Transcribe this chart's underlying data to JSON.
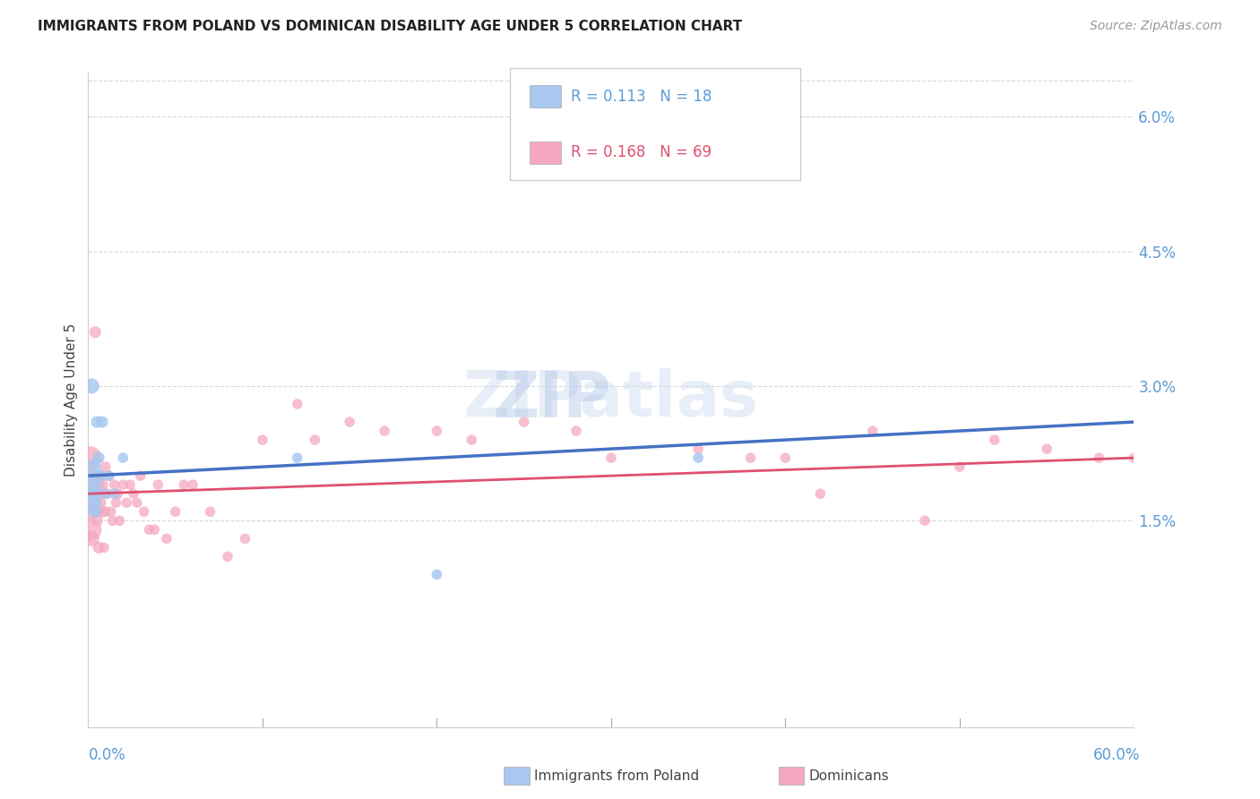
{
  "title": "IMMIGRANTS FROM POLAND VS DOMINICAN DISABILITY AGE UNDER 5 CORRELATION CHART",
  "source": "Source: ZipAtlas.com",
  "ylabel": "Disability Age Under 5",
  "ytick_vals": [
    0.0,
    0.015,
    0.03,
    0.045,
    0.06
  ],
  "ytick_labels": [
    "",
    "1.5%",
    "3.0%",
    "4.5%",
    "6.0%"
  ],
  "xmin": 0.0,
  "xmax": 0.6,
  "ymin": -0.008,
  "ymax": 0.065,
  "legend_r1": "R = 0.113",
  "legend_n1": "N = 18",
  "legend_r2": "R = 0.168",
  "legend_n2": "N = 69",
  "poland_color": "#a8c8f0",
  "dominican_color": "#f5a8c0",
  "trend_poland_color": "#4472c4",
  "trend_dominican_color": "#e05070",
  "poland_x": [
    0.001,
    0.001,
    0.002,
    0.002,
    0.003,
    0.003,
    0.004,
    0.005,
    0.006,
    0.007,
    0.008,
    0.01,
    0.012,
    0.015,
    0.02,
    0.12,
    0.2,
    0.35
  ],
  "poland_y": [
    0.019,
    0.017,
    0.03,
    0.018,
    0.021,
    0.018,
    0.016,
    0.026,
    0.022,
    0.02,
    0.026,
    0.018,
    0.02,
    0.018,
    0.022,
    0.022,
    0.009,
    0.022
  ],
  "dominican_x": [
    0.001,
    0.001,
    0.001,
    0.002,
    0.002,
    0.002,
    0.003,
    0.003,
    0.004,
    0.004,
    0.005,
    0.005,
    0.006,
    0.006,
    0.007,
    0.007,
    0.008,
    0.008,
    0.009,
    0.009,
    0.01,
    0.01,
    0.011,
    0.012,
    0.013,
    0.014,
    0.015,
    0.016,
    0.017,
    0.018,
    0.02,
    0.022,
    0.024,
    0.026,
    0.028,
    0.03,
    0.032,
    0.035,
    0.038,
    0.04,
    0.045,
    0.05,
    0.055,
    0.06,
    0.07,
    0.08,
    0.09,
    0.1,
    0.12,
    0.13,
    0.15,
    0.17,
    0.2,
    0.22,
    0.25,
    0.28,
    0.3,
    0.35,
    0.4,
    0.45,
    0.5,
    0.55,
    0.58,
    0.6,
    0.48,
    0.42,
    0.38,
    0.52,
    0.62
  ],
  "dominican_y": [
    0.022,
    0.019,
    0.014,
    0.018,
    0.016,
    0.013,
    0.017,
    0.02,
    0.016,
    0.036,
    0.018,
    0.015,
    0.019,
    0.012,
    0.02,
    0.017,
    0.016,
    0.019,
    0.018,
    0.012,
    0.021,
    0.016,
    0.018,
    0.02,
    0.016,
    0.015,
    0.019,
    0.017,
    0.018,
    0.015,
    0.019,
    0.017,
    0.019,
    0.018,
    0.017,
    0.02,
    0.016,
    0.014,
    0.014,
    0.019,
    0.013,
    0.016,
    0.019,
    0.019,
    0.016,
    0.011,
    0.013,
    0.024,
    0.028,
    0.024,
    0.026,
    0.025,
    0.025,
    0.024,
    0.026,
    0.025,
    0.022,
    0.023,
    0.022,
    0.025,
    0.021,
    0.023,
    0.022,
    0.022,
    0.015,
    0.018,
    0.022,
    0.024,
    0.022
  ],
  "poland_trend_x0": 0.0,
  "poland_trend_y0": 0.02,
  "poland_trend_x1": 0.6,
  "poland_trend_y1": 0.026,
  "dominican_trend_x0": 0.0,
  "dominican_trend_y0": 0.018,
  "dominican_trend_x1": 0.6,
  "dominican_trend_y1": 0.022,
  "background_color": "#ffffff",
  "grid_color": "#d8d8d8",
  "spine_color": "#cccccc",
  "title_fontsize": 11,
  "label_fontsize": 11,
  "tick_fontsize": 12,
  "source_fontsize": 10
}
